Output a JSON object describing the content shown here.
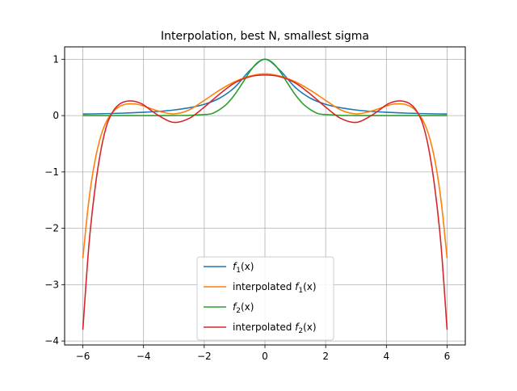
{
  "chart_data": {
    "type": "line",
    "title": "Interpolation, best N, smallest sigma",
    "xlabel": "",
    "ylabel": "",
    "xlim": [
      -6.6,
      6.6
    ],
    "ylim": [
      -4.07,
      1.22
    ],
    "xticks": [
      -6,
      -4,
      -2,
      0,
      2,
      4,
      6
    ],
    "xtick_labels": [
      "−6",
      "−4",
      "−2",
      "0",
      "2",
      "4",
      "6"
    ],
    "yticks": [
      -4,
      -3,
      -2,
      -1,
      0,
      1
    ],
    "ytick_labels": [
      "−4",
      "−3",
      "−2",
      "−1",
      "0",
      "1"
    ],
    "grid": true,
    "legend_position": "lower-center",
    "series": [
      {
        "name": "f1(x)",
        "name_base": "f",
        "name_sub": "1",
        "name_prefix": "",
        "name_suffix": "(x)",
        "color": "#1f77b4",
        "x": [
          -6,
          -5.5,
          -5,
          -4.5,
          -4,
          -3.5,
          -3,
          -2.5,
          -2,
          -1.5,
          -1,
          -0.5,
          0,
          0.5,
          1,
          1.5,
          2,
          2.5,
          3,
          3.5,
          4,
          4.5,
          5,
          5.5,
          6
        ],
        "y": [
          0.027,
          0.032,
          0.038,
          0.047,
          0.059,
          0.075,
          0.1,
          0.138,
          0.2,
          0.308,
          0.5,
          0.8,
          1.0,
          0.8,
          0.5,
          0.308,
          0.2,
          0.138,
          0.1,
          0.075,
          0.059,
          0.047,
          0.038,
          0.032,
          0.027
        ]
      },
      {
        "name": "interpolated f1(x)",
        "name_base": "f",
        "name_sub": "1",
        "name_prefix": "interpolated ",
        "name_suffix": "(x)",
        "color": "#ff7f0e",
        "x": [
          -6,
          -5.8,
          -5.6,
          -5.4,
          -5.2,
          -5,
          -4.8,
          -4.6,
          -4.4,
          -4.2,
          -4,
          -3.5,
          -3,
          -2.5,
          -2,
          -1.5,
          -1,
          -0.5,
          0,
          0.5,
          1,
          1.5,
          2,
          2.5,
          3,
          3.5,
          4,
          4.2,
          4.4,
          4.6,
          4.8,
          5,
          5.2,
          5.4,
          5.6,
          5.8,
          6
        ],
        "y": [
          -2.53,
          -1.5,
          -0.8,
          -0.35,
          -0.08,
          0.07,
          0.16,
          0.2,
          0.21,
          0.2,
          0.17,
          0.08,
          0.03,
          0.1,
          0.27,
          0.45,
          0.6,
          0.7,
          0.74,
          0.7,
          0.6,
          0.45,
          0.27,
          0.1,
          0.03,
          0.08,
          0.17,
          0.2,
          0.21,
          0.2,
          0.16,
          0.07,
          -0.08,
          -0.35,
          -0.8,
          -1.5,
          -2.53
        ]
      },
      {
        "name": "f2(x)",
        "name_base": "f",
        "name_sub": "2",
        "name_prefix": "",
        "name_suffix": "(x)",
        "color": "#2ca02c",
        "x": [
          -6,
          -5,
          -4,
          -3,
          -2.5,
          -2,
          -1.75,
          -1.5,
          -1.25,
          -1,
          -0.75,
          -0.5,
          -0.25,
          0,
          0.25,
          0.5,
          0.75,
          1,
          1.25,
          1.5,
          1.75,
          2,
          2.5,
          3,
          4,
          5,
          6
        ],
        "y": [
          0.0,
          0.0,
          0.0,
          0.001,
          0.004,
          0.018,
          0.036,
          0.105,
          0.21,
          0.37,
          0.57,
          0.78,
          0.94,
          1.0,
          0.94,
          0.78,
          0.57,
          0.37,
          0.21,
          0.105,
          0.036,
          0.018,
          0.004,
          0.001,
          0.0,
          0.0,
          0.0
        ]
      },
      {
        "name": "interpolated f2(x)",
        "name_base": "f",
        "name_sub": "2",
        "name_prefix": "interpolated ",
        "name_suffix": "(x)",
        "color": "#d62728",
        "x": [
          -6,
          -5.8,
          -5.6,
          -5.4,
          -5.2,
          -5,
          -4.8,
          -4.6,
          -4.4,
          -4.2,
          -4,
          -3.5,
          -3,
          -2.5,
          -2,
          -1.5,
          -1,
          -0.5,
          0,
          0.5,
          1,
          1.5,
          2,
          2.5,
          3,
          3.5,
          4,
          4.2,
          4.4,
          4.6,
          4.8,
          5,
          5.2,
          5.4,
          5.6,
          5.8,
          6
        ],
        "y": [
          -3.8,
          -2.3,
          -1.3,
          -0.6,
          -0.15,
          0.08,
          0.2,
          0.25,
          0.26,
          0.24,
          0.19,
          0.0,
          -0.12,
          -0.05,
          0.15,
          0.38,
          0.58,
          0.69,
          0.72,
          0.69,
          0.58,
          0.38,
          0.15,
          -0.05,
          -0.12,
          0.0,
          0.19,
          0.24,
          0.26,
          0.25,
          0.2,
          0.08,
          -0.15,
          -0.6,
          -1.3,
          -2.3,
          -3.8
        ]
      }
    ]
  }
}
